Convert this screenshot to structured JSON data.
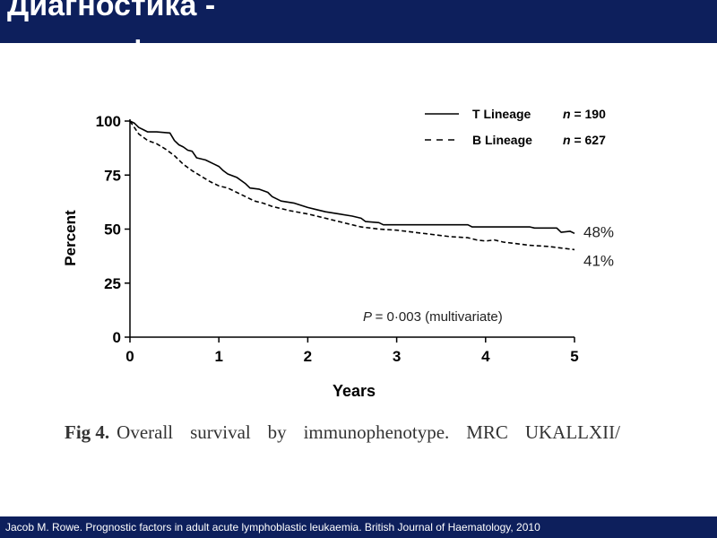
{
  "slide": {
    "title": "Диагностика -\nиммунофенотипирование",
    "footer": "Jacob M. Rowe. Prognostic factors in adult acute lymphoblastic leukaemia. British Journal of Haematology, 2010"
  },
  "caption": {
    "label": "Fig 4.",
    "text": "Overall survival by immunophenotype. MRC UKALLXII/"
  },
  "colors": {
    "header": "#0d1f5c",
    "line": "#000000",
    "axis": "#000000"
  },
  "chart_data": {
    "type": "line",
    "xlabel": "Years",
    "ylabel": "Percent",
    "xlim": [
      0,
      5
    ],
    "ylim": [
      0,
      100
    ],
    "xticks": [
      0,
      1,
      2,
      3,
      4,
      5
    ],
    "yticks": [
      0,
      25,
      50,
      75,
      100
    ],
    "grid": false,
    "legend_position": "top-right",
    "annotation": {
      "p_label": "P",
      "p_text": "= 0·003 (multivariate)"
    },
    "series": [
      {
        "name": "T Lineage",
        "n_label": "n",
        "n_value": "= 190",
        "style": "solid",
        "end_label": "48%",
        "points": [
          [
            0,
            100
          ],
          [
            0.05,
            99
          ],
          [
            0.1,
            97
          ],
          [
            0.15,
            96
          ],
          [
            0.2,
            95
          ],
          [
            0.3,
            95
          ],
          [
            0.45,
            94.5
          ],
          [
            0.5,
            91
          ],
          [
            0.55,
            89
          ],
          [
            0.6,
            88
          ],
          [
            0.65,
            86.5
          ],
          [
            0.7,
            86
          ],
          [
            0.75,
            83
          ],
          [
            0.85,
            82
          ],
          [
            0.95,
            80
          ],
          [
            1.0,
            79
          ],
          [
            1.05,
            77
          ],
          [
            1.1,
            75.5
          ],
          [
            1.2,
            74
          ],
          [
            1.3,
            71
          ],
          [
            1.35,
            69
          ],
          [
            1.45,
            68.5
          ],
          [
            1.55,
            67
          ],
          [
            1.6,
            65
          ],
          [
            1.7,
            63
          ],
          [
            1.85,
            62
          ],
          [
            2.0,
            60
          ],
          [
            2.1,
            59
          ],
          [
            2.2,
            58
          ],
          [
            2.35,
            57
          ],
          [
            2.5,
            56
          ],
          [
            2.6,
            55
          ],
          [
            2.65,
            53.5
          ],
          [
            2.8,
            53
          ],
          [
            2.85,
            52
          ],
          [
            3.0,
            52
          ],
          [
            3.5,
            52
          ],
          [
            3.8,
            52
          ],
          [
            3.85,
            51
          ],
          [
            4.0,
            51
          ],
          [
            4.25,
            51
          ],
          [
            4.5,
            51
          ],
          [
            4.55,
            50.5
          ],
          [
            4.8,
            50.5
          ],
          [
            4.85,
            48.5
          ],
          [
            4.95,
            49
          ],
          [
            5.0,
            48
          ]
        ]
      },
      {
        "name": "B Lineage",
        "n_label": "n",
        "n_value": "= 627",
        "style": "dashed",
        "end_label": "41%",
        "points": [
          [
            0,
            100
          ],
          [
            0.1,
            94
          ],
          [
            0.2,
            91
          ],
          [
            0.3,
            89.5
          ],
          [
            0.4,
            87
          ],
          [
            0.5,
            84
          ],
          [
            0.6,
            80
          ],
          [
            0.7,
            77
          ],
          [
            0.8,
            74.5
          ],
          [
            0.9,
            72
          ],
          [
            1.0,
            70
          ],
          [
            1.1,
            69
          ],
          [
            1.2,
            67
          ],
          [
            1.3,
            65
          ],
          [
            1.4,
            63
          ],
          [
            1.5,
            62
          ],
          [
            1.6,
            60.5
          ],
          [
            1.7,
            59.5
          ],
          [
            1.8,
            58.5
          ],
          [
            2.0,
            57
          ],
          [
            2.2,
            55
          ],
          [
            2.4,
            53
          ],
          [
            2.6,
            51
          ],
          [
            2.8,
            50
          ],
          [
            3.0,
            49.5
          ],
          [
            3.2,
            48.5
          ],
          [
            3.4,
            47.5
          ],
          [
            3.6,
            46.5
          ],
          [
            3.8,
            46
          ],
          [
            3.9,
            45
          ],
          [
            4.0,
            44.5
          ],
          [
            4.1,
            45
          ],
          [
            4.2,
            44
          ],
          [
            4.3,
            43.5
          ],
          [
            4.5,
            42.5
          ],
          [
            4.7,
            42
          ],
          [
            4.9,
            41
          ],
          [
            5.0,
            40.5
          ]
        ]
      }
    ]
  }
}
